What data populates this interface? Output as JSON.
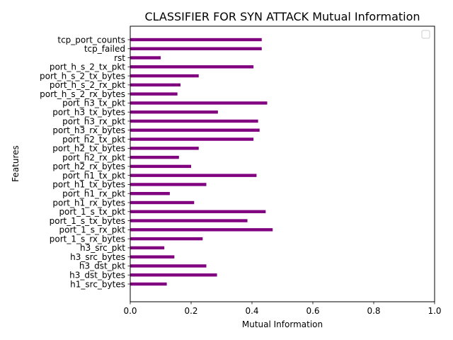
{
  "chart_data": {
    "type": "bar",
    "orientation": "horizontal",
    "title": "CLASSIFIER FOR SYN ATTACK Mutual Information",
    "xlabel": "Mutual Information",
    "ylabel": "Features",
    "xlim": [
      0.0,
      1.0
    ],
    "xticks": [
      "0.0",
      "0.2",
      "0.4",
      "0.6",
      "0.8",
      "1.0"
    ],
    "bar_color": "#800080",
    "legend": "upper right, empty",
    "grid": false,
    "categories": [
      "h1_src_bytes",
      "h3_dst_bytes",
      "h3_dst_pkt",
      "h3_src_bytes",
      "h3_src_pkt",
      "port_1_s_rx_bytes",
      "port_1_s_rx_pkt",
      "port_1_s_tx_bytes",
      "port_1_s_tx_pkt",
      "port_h1_rx_bytes",
      "port_h1_rx_pkt",
      "port_h1_tx_bytes",
      "port_h1_tx_pkt",
      "port_h2_rx_bytes",
      "port_h2_rx_pkt",
      "port_h2_tx_bytes",
      "port_h2_tx_pkt",
      "port_h3_rx_bytes",
      "port_h3_rx_pkt",
      "port_h3_tx_bytes",
      "port_h3_tx_pkt",
      "port_h_s_2_rx_bytes",
      "port_h_s_2_rx_pkt",
      "port_h_s_2_tx_bytes",
      "port_h_s_2_tx_pkt",
      "rst",
      "tcp_failed",
      "tcp_port_counts"
    ],
    "values": [
      0.12,
      0.285,
      0.25,
      0.145,
      0.112,
      0.238,
      0.468,
      0.385,
      0.445,
      0.21,
      0.13,
      0.25,
      0.415,
      0.2,
      0.16,
      0.225,
      0.405,
      0.425,
      0.42,
      0.288,
      0.45,
      0.155,
      0.165,
      0.225,
      0.405,
      0.1,
      0.432,
      0.432
    ]
  }
}
